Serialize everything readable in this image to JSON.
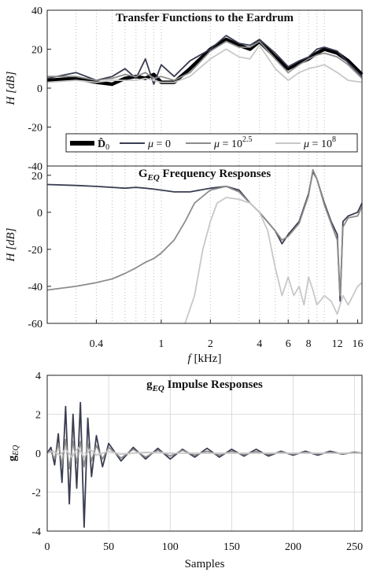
{
  "chart_data": [
    {
      "type": "line",
      "title": "Transfer Functions to the Eardrum",
      "ylabel": "H [dB]",
      "ylim": [
        -40,
        40
      ],
      "xscale": "log",
      "xlim_khz": [
        0.2,
        17
      ],
      "yticks": [
        "40",
        "20",
        "0",
        "-20",
        "-40"
      ],
      "legend_position": "bottom",
      "legend": [
        {
          "label": "D̂₀",
          "color": "#000000"
        },
        {
          "label": "μ = 0",
          "color": "#3a3d52"
        },
        {
          "label": "μ = 10^2.5",
          "color": "#8c8c8c"
        },
        {
          "label": "μ = 10^8",
          "color": "#c8c8c8"
        }
      ],
      "legend_text": {
        "d0_base": "D̂",
        "d0_sub": "0",
        "mu": "μ",
        "eq": " = ",
        "mu0_val": "0",
        "mu25_base": "10",
        "mu25_exp": "2.5",
        "mu8_base": "10",
        "mu8_exp": "8"
      },
      "series": [
        {
          "name": "D̂₀",
          "color": "#000000",
          "x_khz": [
            0.2,
            0.3,
            0.4,
            0.5,
            0.6,
            0.7,
            0.8,
            0.9,
            1.0,
            1.2,
            1.5,
            2.0,
            2.5,
            3.0,
            3.5,
            4.0,
            5.0,
            6.0,
            7.0,
            8.0,
            9.0,
            10.0,
            12.0,
            14.0,
            17.0
          ],
          "values": [
            4,
            5,
            3,
            2,
            5,
            6,
            5,
            7,
            3,
            3,
            10,
            20,
            25,
            22,
            20,
            24,
            16,
            10,
            13,
            15,
            18,
            20,
            18,
            14,
            7
          ]
        },
        {
          "name": "μ = 0",
          "color": "#3a3d52",
          "x_khz": [
            0.2,
            0.3,
            0.4,
            0.5,
            0.6,
            0.7,
            0.8,
            0.9,
            1.0,
            1.2,
            1.5,
            2.0,
            2.5,
            3.0,
            3.5,
            4.0,
            5.0,
            6.0,
            7.0,
            8.0,
            9.0,
            10.0,
            12.0,
            14.0,
            17.0
          ],
          "values": [
            5,
            8,
            4,
            6,
            10,
            5,
            15,
            2,
            12,
            6,
            14,
            20,
            27,
            23,
            22,
            25,
            18,
            11,
            14,
            16,
            20,
            21,
            19,
            13,
            6
          ]
        },
        {
          "name": "μ = 10^2.5",
          "color": "#8c8c8c",
          "x_khz": [
            0.2,
            0.3,
            0.4,
            0.5,
            0.6,
            0.7,
            0.8,
            0.9,
            1.0,
            1.2,
            1.5,
            2.0,
            2.5,
            3.0,
            3.5,
            4.0,
            5.0,
            6.0,
            7.0,
            8.0,
            9.0,
            10.0,
            12.0,
            14.0,
            17.0
          ],
          "values": [
            6,
            6,
            4,
            5,
            7,
            6,
            8,
            5,
            6,
            4,
            8,
            19,
            24,
            21,
            21,
            24,
            15,
            8,
            12,
            15,
            17,
            18,
            16,
            12,
            5
          ]
        },
        {
          "name": "μ = 10^8",
          "color": "#c8c8c8",
          "x_khz": [
            0.2,
            0.3,
            0.4,
            0.5,
            0.6,
            0.7,
            0.8,
            0.9,
            1.0,
            1.2,
            1.5,
            2.0,
            2.5,
            3.0,
            3.5,
            4.0,
            5.0,
            6.0,
            7.0,
            8.0,
            9.0,
            10.0,
            12.0,
            14.0,
            17.0
          ],
          "values": [
            3,
            4,
            3,
            4,
            4,
            4,
            5,
            4,
            3,
            3,
            6,
            15,
            20,
            16,
            15,
            22,
            10,
            4,
            8,
            10,
            11,
            12,
            8,
            4,
            3
          ]
        }
      ]
    },
    {
      "type": "line",
      "title": "G_EQ Frequency Responses",
      "title_parts": {
        "base": "G",
        "sub": "EQ",
        "rest": " Frequency Responses"
      },
      "xlabel": "f [kHz]",
      "xlabel_parts": {
        "var": "f",
        "rest": " [kHz]"
      },
      "ylabel": "H [dB]",
      "ylim": [
        -60,
        25
      ],
      "xscale": "log",
      "xlim_khz": [
        0.2,
        17
      ],
      "xticks": [
        "0.4",
        "1",
        "2",
        "4",
        "6",
        "8",
        "12",
        "16"
      ],
      "yticks": [
        "20",
        "0",
        "-20",
        "-40",
        "-60"
      ],
      "series": [
        {
          "name": "μ = 0",
          "color": "#3a3d52",
          "x_khz": [
            0.2,
            0.3,
            0.4,
            0.5,
            0.6,
            0.7,
            0.8,
            0.9,
            1.0,
            1.2,
            1.5,
            2.0,
            2.5,
            3.0,
            3.5,
            4.0,
            5.0,
            5.5,
            6.0,
            7.0,
            8.0,
            8.5,
            9.0,
            10.0,
            11.0,
            12.0,
            12.5,
            13.0,
            14.0,
            16.0,
            17.0
          ],
          "values": [
            15,
            14.5,
            14,
            13.5,
            13,
            13.5,
            13,
            12.5,
            12,
            11,
            11,
            13,
            14,
            12,
            5,
            0,
            -10,
            -17,
            -12,
            -5,
            10,
            22,
            18,
            5,
            -5,
            -12,
            -48,
            -5,
            -2,
            0,
            5
          ]
        },
        {
          "name": "μ = 10^2.5",
          "color": "#8c8c8c",
          "x_khz": [
            0.2,
            0.3,
            0.4,
            0.5,
            0.6,
            0.7,
            0.8,
            0.9,
            1.0,
            1.2,
            1.4,
            1.6,
            2.0,
            2.5,
            3.0,
            3.5,
            4.0,
            5.0,
            5.5,
            6.0,
            7.0,
            8.0,
            8.5,
            9.0,
            10.0,
            11.0,
            12.0,
            12.5,
            13.0,
            14.0,
            16.0,
            17.0
          ],
          "values": [
            -42,
            -40,
            -38,
            -36,
            -33,
            -30,
            -27,
            -25,
            -22,
            -15,
            -5,
            5,
            12,
            14,
            11,
            5,
            0,
            -10,
            -15,
            -13,
            -6,
            9,
            23,
            18,
            4,
            -6,
            -15,
            -45,
            -8,
            -3,
            -2,
            3
          ]
        },
        {
          "name": "μ = 10^8",
          "color": "#c8c8c8",
          "x_khz": [
            1.4,
            1.6,
            1.8,
            2.0,
            2.2,
            2.5,
            3.0,
            3.5,
            4.0,
            4.5,
            5.0,
            5.5,
            6.0,
            6.5,
            7.0,
            7.5,
            8.0,
            8.5,
            9.0,
            10.0,
            11.0,
            12.0,
            13.0,
            14.0,
            16.0,
            17.0
          ],
          "values": [
            -60,
            -45,
            -20,
            -5,
            5,
            8,
            7,
            5,
            0,
            -10,
            -30,
            -45,
            -35,
            -45,
            -40,
            -50,
            -35,
            -42,
            -50,
            -45,
            -48,
            -55,
            -45,
            -50,
            -40,
            -38
          ]
        }
      ]
    },
    {
      "type": "line",
      "title": "g_EQ Impulse Responses",
      "title_parts": {
        "base": "g",
        "sub": "EQ",
        "rest": " Impulse Responses"
      },
      "xlabel": "Samples",
      "ylabel": "g_EQ",
      "ylabel_parts": {
        "base": "g",
        "sub": "EQ"
      },
      "xlim": [
        0,
        256
      ],
      "ylim": [
        -4,
        4
      ],
      "xticks": [
        "0",
        "50",
        "100",
        "150",
        "200",
        "250"
      ],
      "yticks": [
        "4",
        "2",
        "0",
        "-2",
        "-4"
      ],
      "series": [
        {
          "name": "μ = 0",
          "color": "#3a3d52",
          "x": [
            0,
            3,
            6,
            9,
            12,
            15,
            18,
            21,
            24,
            27,
            30,
            33,
            36,
            40,
            45,
            50,
            60,
            70,
            80,
            90,
            100,
            110,
            120,
            130,
            140,
            150,
            160,
            170,
            180,
            190,
            200,
            210,
            220,
            230,
            240,
            250,
            256
          ],
          "values": [
            0,
            0.3,
            -0.6,
            1.0,
            -1.5,
            2.4,
            -2.6,
            2.0,
            -1.8,
            2.6,
            -3.8,
            1.8,
            -1.2,
            0.9,
            -0.7,
            0.5,
            -0.4,
            0.3,
            -0.3,
            0.25,
            -0.3,
            0.2,
            -0.2,
            0.25,
            -0.2,
            0.2,
            -0.15,
            0.2,
            -0.15,
            0.1,
            -0.1,
            0.1,
            -0.1,
            0.1,
            -0.05,
            0.05,
            0
          ]
        },
        {
          "name": "μ = 10^2.5",
          "color": "#8c8c8c",
          "x": [
            0,
            3,
            6,
            9,
            12,
            15,
            18,
            21,
            24,
            27,
            30,
            33,
            36,
            40,
            45,
            50,
            60,
            70,
            80,
            90,
            100,
            110,
            120,
            130,
            140,
            150,
            160,
            170,
            180,
            190,
            200,
            210,
            220,
            230,
            240,
            250,
            256
          ],
          "values": [
            0,
            0.1,
            -0.3,
            0.5,
            -0.6,
            0.7,
            -0.8,
            0.6,
            -0.5,
            0.6,
            -0.7,
            0.5,
            -0.4,
            0.4,
            -0.3,
            0.3,
            -0.25,
            0.2,
            -0.2,
            0.15,
            -0.15,
            0.15,
            -0.1,
            0.1,
            -0.1,
            0.1,
            -0.08,
            0.08,
            -0.06,
            0.06,
            -0.05,
            0.05,
            -0.04,
            0.04,
            -0.03,
            0.03,
            0
          ]
        },
        {
          "name": "μ = 10^8",
          "color": "#c8c8c8",
          "x": [
            0,
            5,
            10,
            15,
            20,
            25,
            30,
            35,
            40,
            50,
            60,
            80,
            100,
            150,
            200,
            256
          ],
          "values": [
            0,
            0.1,
            -0.1,
            0.2,
            -0.2,
            0.3,
            -0.2,
            0.2,
            -0.1,
            0.1,
            -0.05,
            0.05,
            0,
            0,
            0,
            0
          ]
        }
      ]
    }
  ]
}
